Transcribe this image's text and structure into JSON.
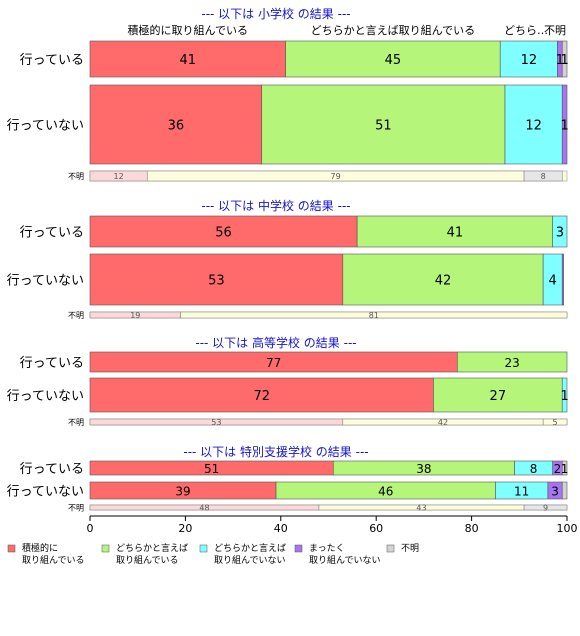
{
  "colors": {
    "s1": "#FF6B6B",
    "s2": "#B4F57A",
    "s3": "#7FFFFF",
    "s4": "#A974F0",
    "s5": "#D3D3D3",
    "title": "#1414D2",
    "fumei_bg": "#FDFDDC",
    "fumei_first": "#FBD9D9"
  },
  "chart_data": {
    "type": "bar",
    "orientation": "horizontal",
    "stacked": true,
    "xlim": [
      0,
      100
    ],
    "xticks": [
      "0",
      "20",
      "40",
      "60",
      "80",
      "100"
    ],
    "legend_placement": "bottom",
    "series": [
      {
        "name": "積極的に\n取り組んでいる"
      },
      {
        "name": "どちらかと言えば\n取り組んでいる"
      },
      {
        "name": "どちらかと言えば\n取り組んでいない"
      },
      {
        "name": "まったく\n取り組んでいない"
      },
      {
        "name": "不明"
      }
    ],
    "column_labels": [
      "積極的に取り組んでいる",
      "どちらかと言えば取り組んでいる",
      "どちら…",
      "まった…",
      "不明"
    ],
    "panels": [
      {
        "title": "--- 以下は 小学校 の結果 ---",
        "rows": [
          {
            "label": "行っている",
            "values": [
              41,
              45,
              12,
              1,
              1
            ],
            "labels": [
              "41",
              "45",
              "12",
              "1",
              "1"
            ]
          },
          {
            "label": "行っていない",
            "values": [
              36,
              51,
              12,
              1,
              0
            ],
            "labels": [
              "36",
              "51",
              "12",
              "1",
              ""
            ]
          }
        ],
        "fumei": {
          "label": "不明",
          "values": [
            12,
            79,
            0,
            0,
            8
          ],
          "labels": [
            "12",
            "79",
            "",
            "",
            "8"
          ]
        }
      },
      {
        "title": "--- 以下は 中学校 の結果 ---",
        "rows": [
          {
            "label": "行っている",
            "values": [
              56,
              41,
              3,
              0,
              0
            ],
            "labels": [
              "56",
              "41",
              "3",
              "",
              ""
            ]
          },
          {
            "label": "行っていない",
            "values": [
              53,
              42,
              4,
              0.3,
              0
            ],
            "labels": [
              "53",
              "42",
              "4",
              "",
              ""
            ]
          }
        ],
        "fumei": {
          "label": "不明",
          "values": [
            19,
            81,
            0,
            0,
            0
          ],
          "labels": [
            "19",
            "81",
            "",
            "",
            ""
          ]
        }
      },
      {
        "title": "--- 以下は 高等学校 の結果 ---",
        "rows": [
          {
            "label": "行っている",
            "values": [
              77,
              23,
              0,
              0,
              0
            ],
            "labels": [
              "77",
              "23",
              "",
              "",
              ""
            ]
          },
          {
            "label": "行っていない",
            "values": [
              72,
              27,
              1,
              0,
              0
            ],
            "labels": [
              "72",
              "27",
              "1",
              "",
              ""
            ]
          }
        ],
        "fumei": {
          "label": "不明",
          "values": [
            53,
            42,
            5,
            0,
            0
          ],
          "labels": [
            "53",
            "42",
            "5",
            "",
            ""
          ]
        }
      },
      {
        "title": "--- 以下は 特別支援学校 の結果 ---",
        "rows": [
          {
            "label": "行っている",
            "values": [
              51,
              38,
              8,
              2,
              1
            ],
            "labels": [
              "51",
              "38",
              "8",
              "2",
              "1"
            ]
          },
          {
            "label": "行っていない",
            "values": [
              39,
              46,
              11,
              3,
              1
            ],
            "labels": [
              "39",
              "46",
              "11",
              "3",
              ""
            ]
          }
        ],
        "fumei": {
          "label": "不明",
          "values": [
            48,
            43,
            0,
            0,
            9
          ],
          "labels": [
            "48",
            "43",
            "",
            "",
            "9"
          ]
        }
      }
    ]
  }
}
